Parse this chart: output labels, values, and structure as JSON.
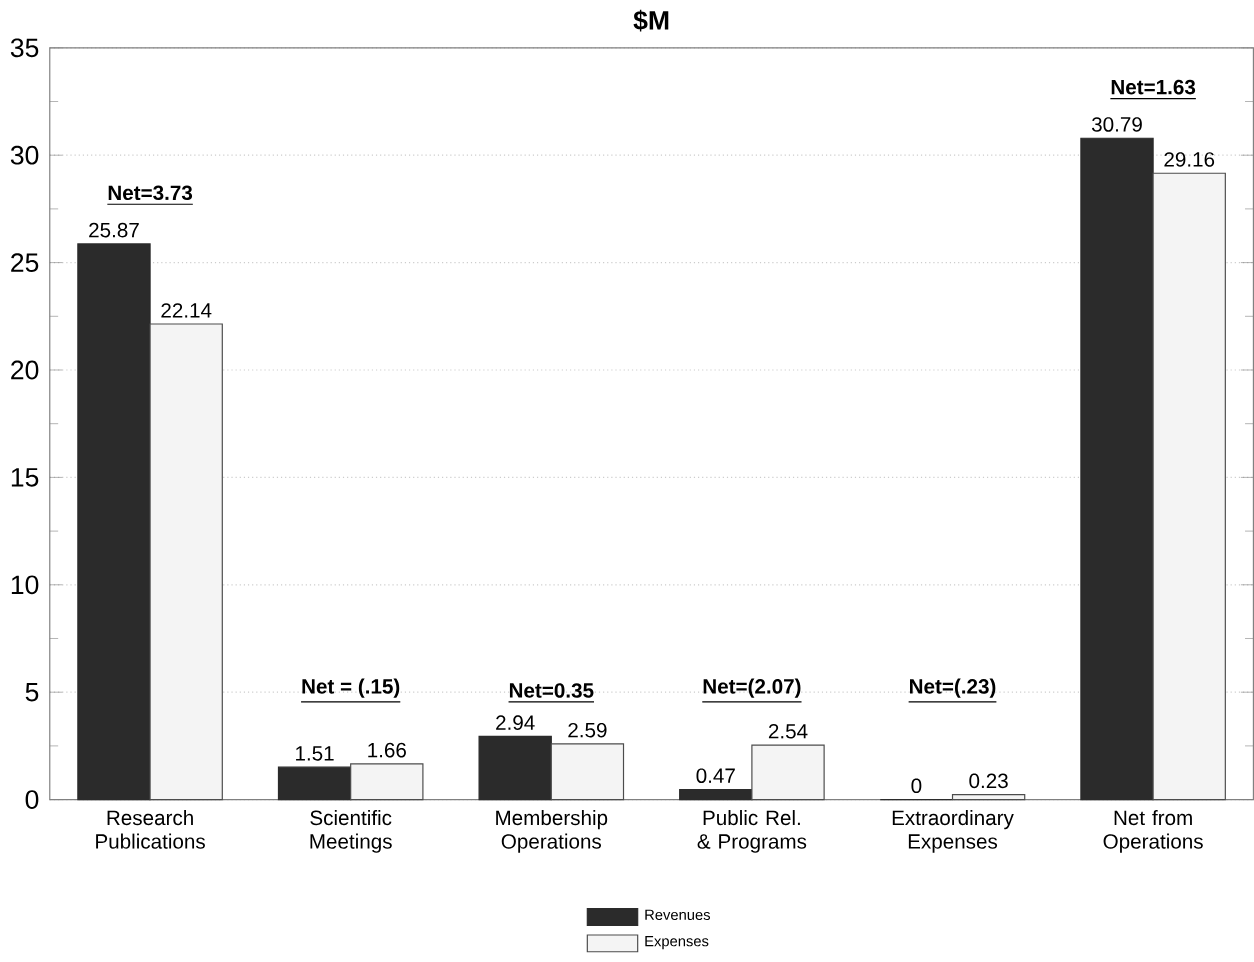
{
  "chart_data": {
    "type": "bar",
    "title": "$M",
    "categories": [
      "Research Publications",
      "Scientific Meetings",
      "Membership Operations",
      "Public Rel. & Programs",
      "Extraordinary Expenses",
      "Net from Operations"
    ],
    "series": [
      {
        "name": "Revenues",
        "color": "#2b2b2b",
        "values": [
          25.87,
          1.51,
          2.94,
          0.47,
          0,
          30.79
        ]
      },
      {
        "name": "Expenses",
        "color": "#f4f4f4",
        "values": [
          22.14,
          1.66,
          2.59,
          2.54,
          0.23,
          29.16
        ]
      }
    ],
    "ylim": [
      0,
      35
    ],
    "yticks": [
      0,
      5,
      10,
      15,
      20,
      25,
      30,
      35
    ],
    "grid": "y",
    "legend": "bottom",
    "data_labels": true,
    "annotations": [
      "Net=3.73",
      "Net = (.15)",
      "Net=0.35",
      "Net=(2.07)",
      "Net=(.23)",
      "Net=1.63"
    ]
  }
}
